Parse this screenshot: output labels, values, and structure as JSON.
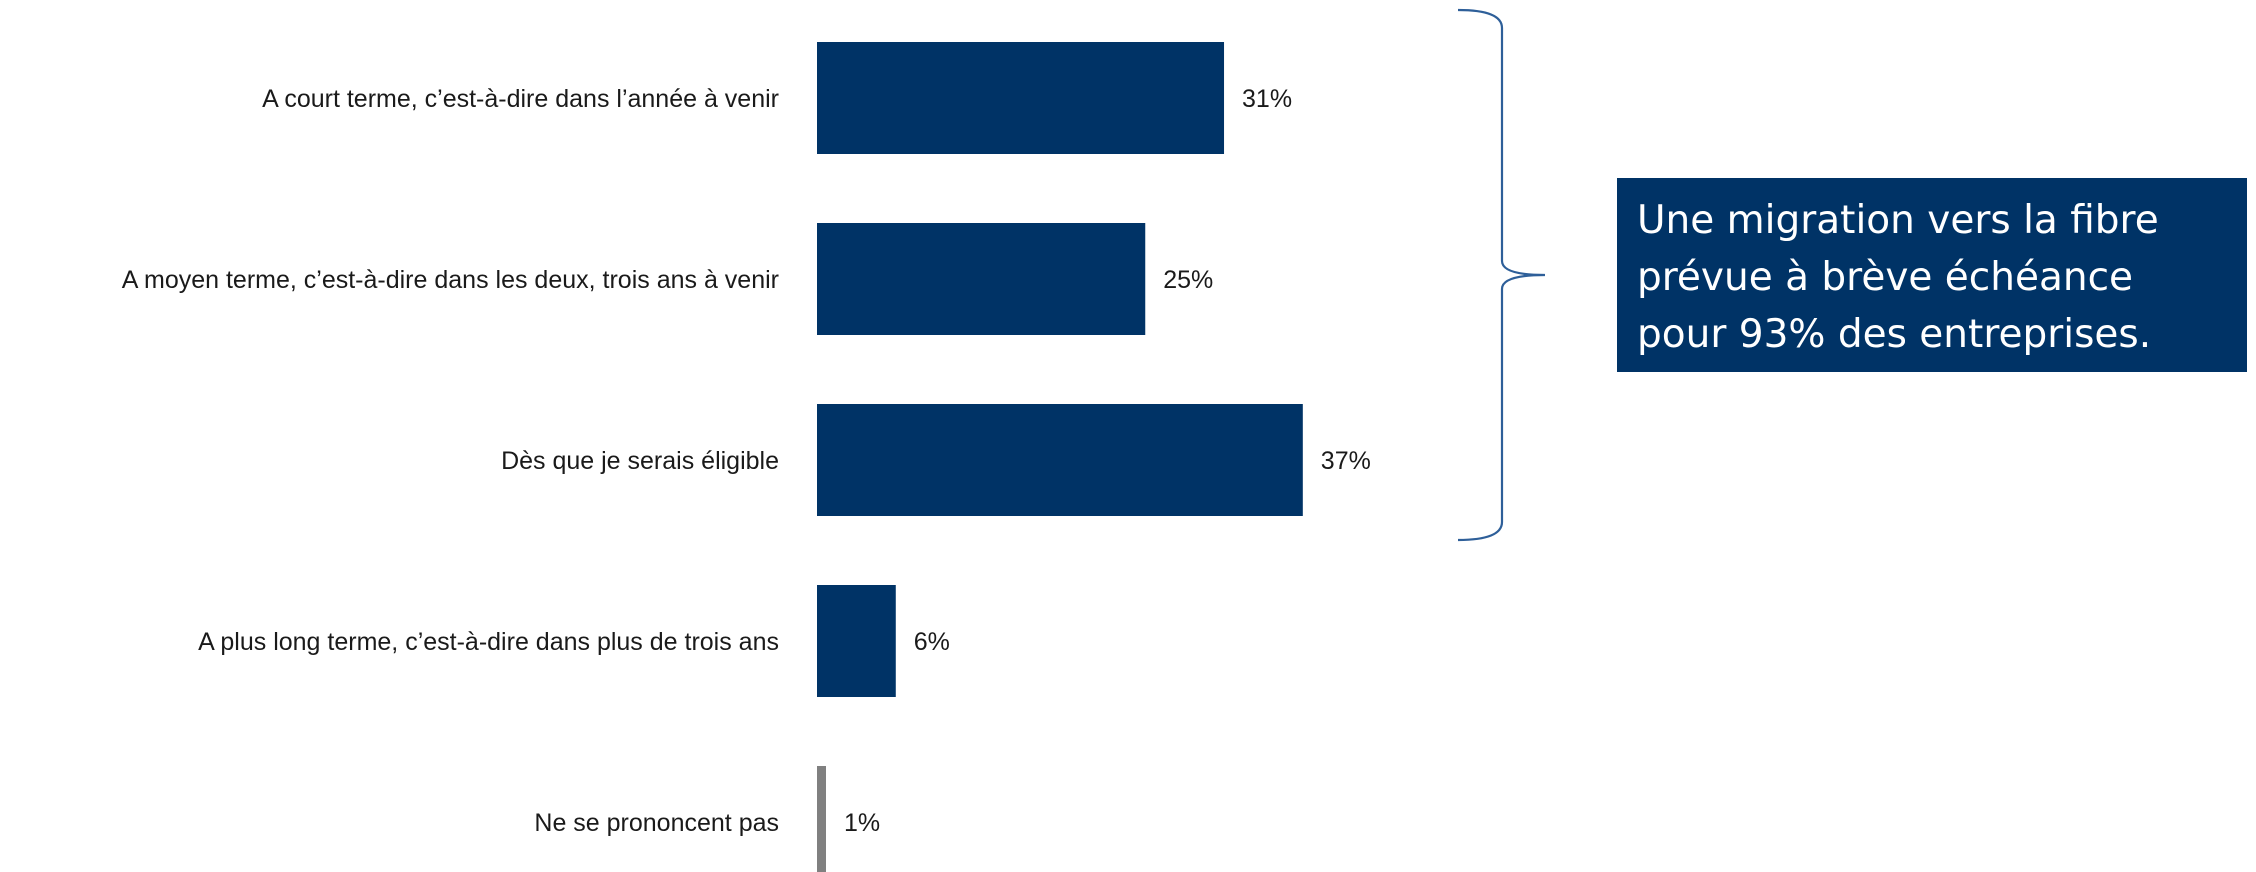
{
  "chart_data": {
    "type": "bar",
    "orientation": "horizontal",
    "categories": [
      "A court terme, c’est-à-dire dans l’année à venir",
      "A moyen terme, c’est-à-dire dans les deux, trois ans à venir",
      "Dès que je serais éligible",
      "A plus long terme, c’est-à-dire dans plus de trois ans",
      "Ne se prononcent pas"
    ],
    "values": [
      31,
      25,
      37,
      6,
      1
    ],
    "value_labels": [
      "31%",
      "25%",
      "37%",
      "6%",
      "1%"
    ],
    "bar_colors": [
      "#003366",
      "#003366",
      "#003366",
      "#003366",
      "#808080"
    ],
    "xlim": [
      0,
      100
    ],
    "grid": false,
    "legend": "none",
    "bracket_spans": [
      0,
      2
    ]
  },
  "callout": {
    "text": "Une migration vers la fibre prévue à brève échéance pour 93% des entreprises.",
    "background": "#003366",
    "text_color": "#ffffff"
  },
  "colors": {
    "bar": "#003366",
    "bar_muted": "#808080",
    "bracket": "#2e5f99",
    "text": "#1a1a1a"
  }
}
